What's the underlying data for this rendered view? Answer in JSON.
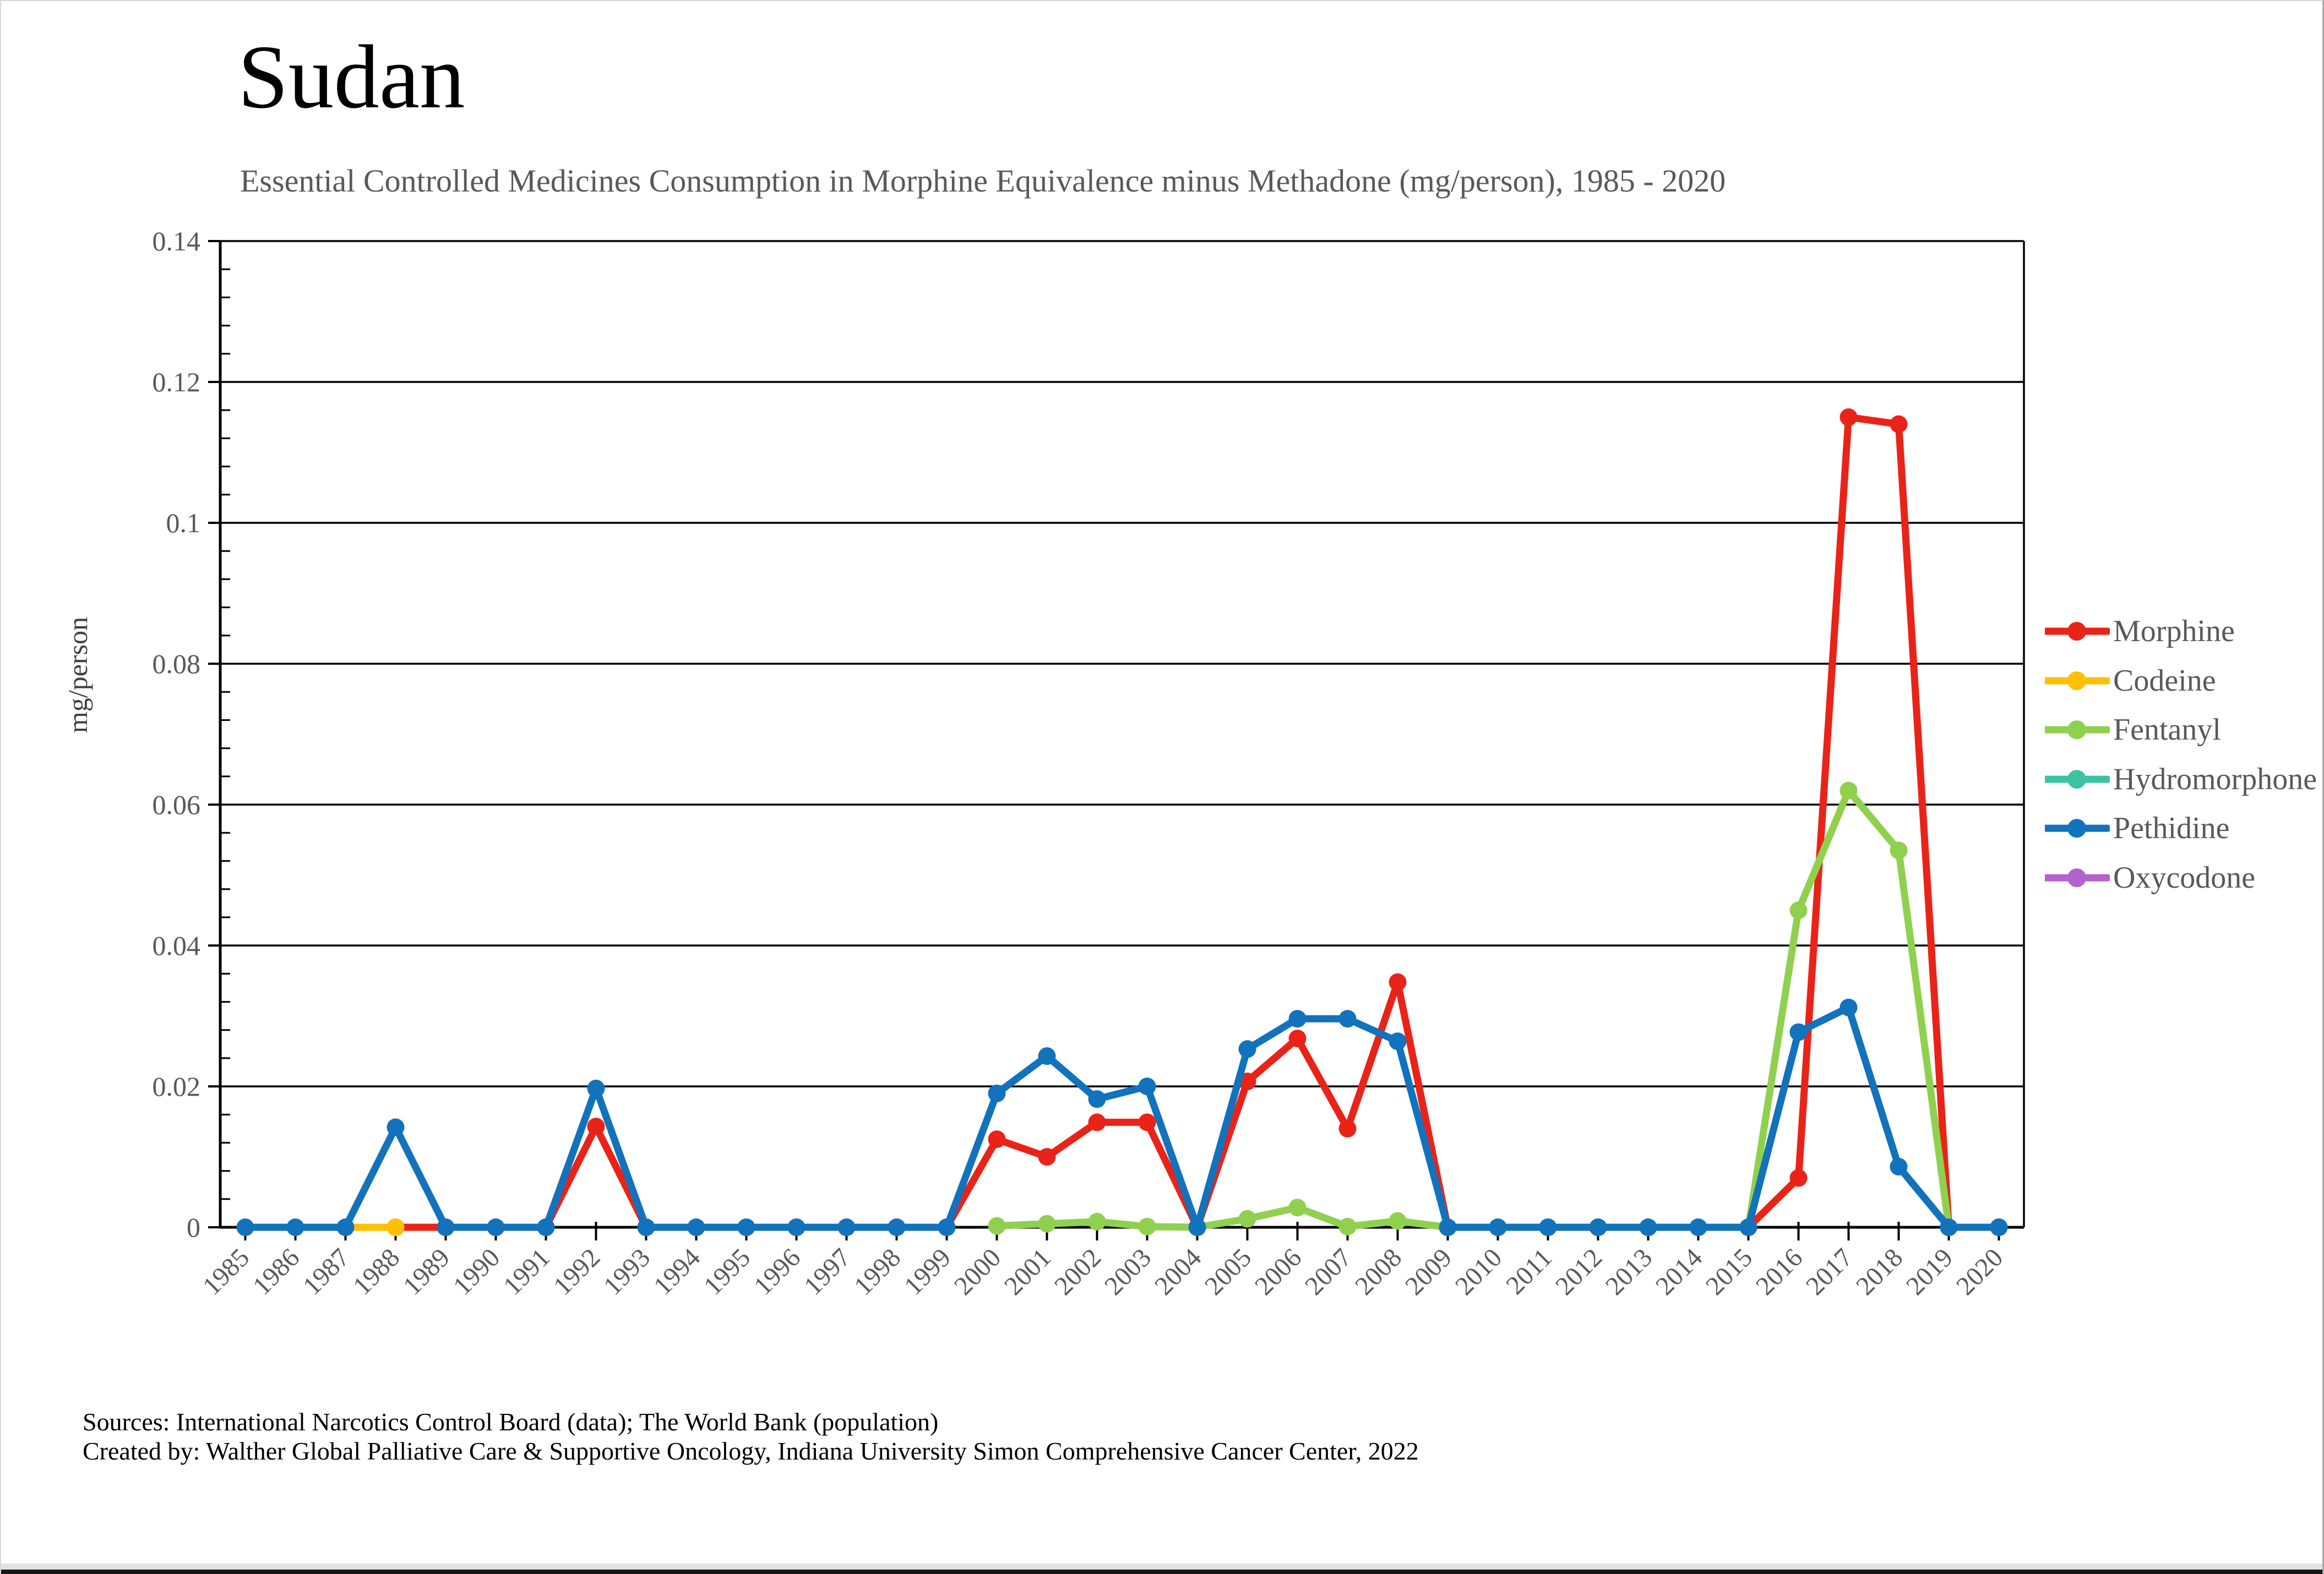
{
  "page": {
    "title": "Sudan",
    "subtitle": "Essential Controlled Medicines Consumption in Morphine Equivalence minus Methadone (mg/person), 1985 - 2020",
    "footer_lines": [
      "Sources: International Narcotics Control Board (data); The World Bank (population)",
      "Created by: Walther Global Palliative Care & Supportive Oncology, Indiana University Simon Comprehensive Cancer Center, 2022"
    ]
  },
  "chart_data": {
    "type": "line",
    "title": "Sudan",
    "subtitle": "Essential Controlled Medicines Consumption in Morphine Equivalence minus Methadone (mg/person), 1985 - 2020",
    "xlabel": "",
    "ylabel": "mg/person",
    "ylim": [
      0,
      0.14
    ],
    "ytick_step": 0.02,
    "ytick_labels": [
      "0",
      "0.02",
      "0.04",
      "0.06",
      "0.08",
      "0.1",
      "0.12",
      "0.14"
    ],
    "grid": "horizontal",
    "legend_position": "right",
    "categories": [
      "1985",
      "1986",
      "1987",
      "1988",
      "1989",
      "1990",
      "1991",
      "1992",
      "1993",
      "1994",
      "1995",
      "1996",
      "1997",
      "1998",
      "1999",
      "2000",
      "2001",
      "2002",
      "2003",
      "2004",
      "2005",
      "2006",
      "2007",
      "2008",
      "2009",
      "2010",
      "2011",
      "2012",
      "2013",
      "2014",
      "2015",
      "2016",
      "2017",
      "2018",
      "2019",
      "2020"
    ],
    "series": [
      {
        "name": "Morphine",
        "color": "#EA2318",
        "values": [
          null,
          null,
          null,
          0,
          0,
          0,
          0,
          0.0143,
          0,
          0,
          0,
          0,
          0,
          0,
          0,
          0.0125,
          0.01,
          0.0149,
          0.0149,
          0,
          0.0207,
          0.0268,
          0.014,
          0.0348,
          0,
          0,
          0,
          0,
          0,
          0,
          0,
          0.007,
          0.115,
          0.114,
          0,
          0
        ]
      },
      {
        "name": "Codeine",
        "color": "#FFC000",
        "values": [
          null,
          null,
          0,
          0,
          null,
          null,
          null,
          null,
          null,
          null,
          null,
          null,
          null,
          null,
          null,
          null,
          null,
          null,
          null,
          null,
          null,
          null,
          null,
          null,
          null,
          null,
          null,
          null,
          null,
          null,
          null,
          null,
          null,
          null,
          null,
          null
        ]
      },
      {
        "name": "Fentanyl",
        "color": "#90D04F",
        "values": [
          null,
          null,
          null,
          null,
          null,
          null,
          null,
          null,
          null,
          null,
          null,
          null,
          null,
          null,
          null,
          0.0002,
          0.0005,
          0.0008,
          0.0001,
          0,
          0.0012,
          0.0028,
          0.0001,
          0.0009,
          0,
          0,
          0,
          0,
          0,
          0,
          0,
          0.045,
          0.062,
          0.0535,
          0,
          0
        ]
      },
      {
        "name": "Hydromorphone",
        "color": "#3DC2A2",
        "values": [
          null,
          null,
          null,
          null,
          null,
          null,
          null,
          null,
          null,
          null,
          null,
          null,
          null,
          null,
          null,
          null,
          null,
          null,
          null,
          null,
          null,
          null,
          null,
          null,
          null,
          null,
          null,
          null,
          null,
          null,
          null,
          null,
          null,
          null,
          null,
          null
        ]
      },
      {
        "name": "Pethidine",
        "color": "#1272BC",
        "values": [
          0,
          0,
          0,
          0.0142,
          0,
          0,
          0,
          0.0197,
          0,
          0,
          0,
          0,
          0,
          0,
          0,
          0.019,
          0.0243,
          0.0182,
          0.02,
          0,
          0.0253,
          0.0296,
          0.0296,
          0.0264,
          0,
          0,
          0,
          0,
          0,
          0,
          0,
          0.0277,
          0.0312,
          0.0086,
          0,
          0
        ]
      },
      {
        "name": "Oxycodone",
        "color": "#B361CC",
        "values": [
          null,
          null,
          null,
          null,
          null,
          null,
          null,
          null,
          null,
          null,
          null,
          null,
          null,
          null,
          null,
          null,
          null,
          null,
          null,
          null,
          null,
          null,
          null,
          null,
          null,
          null,
          null,
          null,
          null,
          null,
          null,
          null,
          null,
          null,
          null,
          null
        ]
      }
    ]
  }
}
